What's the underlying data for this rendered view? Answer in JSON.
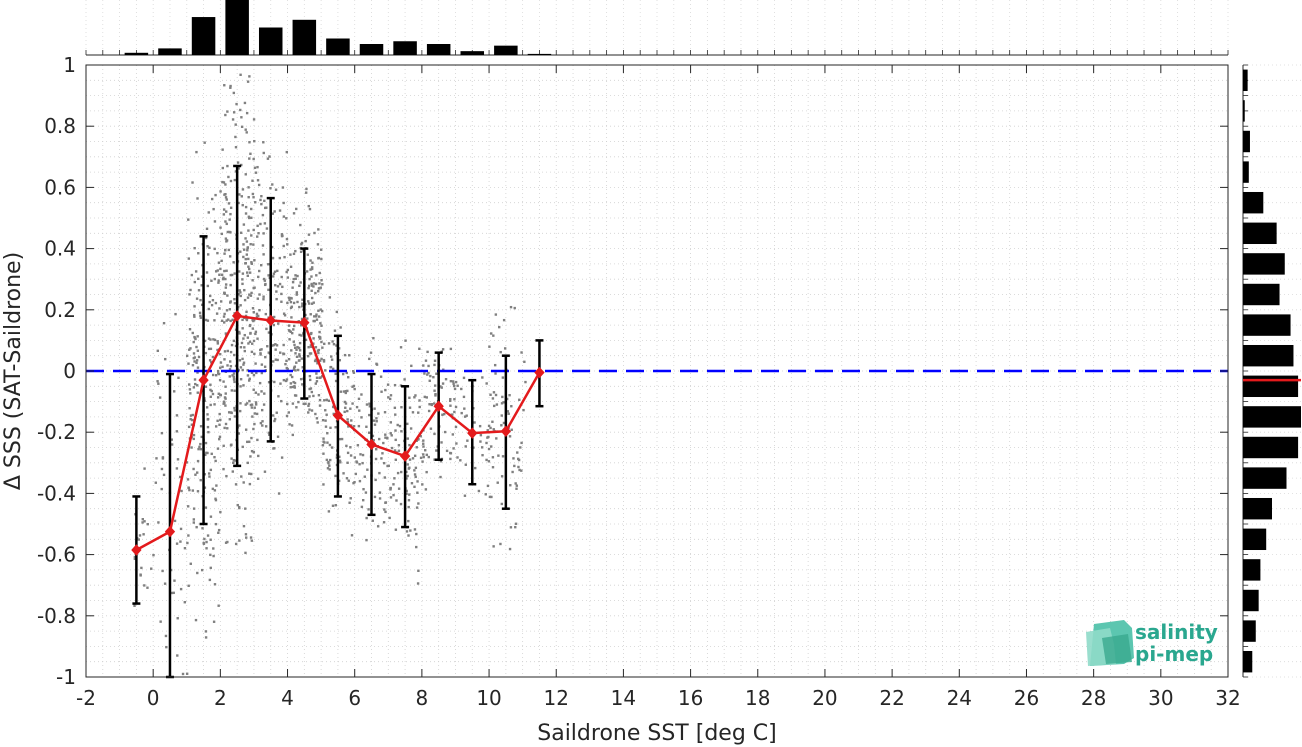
{
  "chart_data": {
    "type": "scatter",
    "xlabel": "Saildrone SST [deg C]",
    "ylabel": "Δ SSS (SAT-Saildrone)",
    "xlim": [
      -2,
      32
    ],
    "ylim": [
      -1,
      1
    ],
    "xticks": [
      -2,
      0,
      2,
      4,
      6,
      8,
      10,
      12,
      14,
      16,
      18,
      20,
      22,
      24,
      26,
      28,
      30,
      32
    ],
    "yticks": [
      -1,
      -0.8,
      -0.6,
      -0.4,
      -0.2,
      0,
      0.2,
      0.4,
      0.6,
      0.8,
      1
    ],
    "grid": true,
    "reference_line": {
      "y": 0,
      "color": "#0000ff",
      "style": "dashed"
    },
    "binned_mean": {
      "color": "#e31a1c",
      "x": [
        -0.5,
        0.5,
        1.5,
        2.5,
        3.5,
        4.5,
        5.5,
        6.5,
        7.5,
        8.5,
        9.5,
        10.5,
        11.5
      ],
      "mean": [
        -0.585,
        -0.525,
        -0.03,
        0.18,
        0.165,
        0.158,
        -0.145,
        -0.24,
        -0.278,
        -0.115,
        -0.203,
        -0.197,
        -0.005
      ],
      "err_low": [
        -0.76,
        -1.0,
        -0.5,
        -0.31,
        -0.23,
        -0.09,
        -0.41,
        -0.47,
        -0.51,
        -0.29,
        -0.37,
        -0.45,
        -0.115
      ],
      "err_high": [
        -0.41,
        -0.01,
        0.44,
        0.67,
        0.565,
        0.4,
        0.115,
        -0.01,
        -0.05,
        0.06,
        -0.03,
        0.05,
        0.1
      ]
    },
    "scatter_color": "#808080",
    "top_histogram": {
      "bins": [
        -0.5,
        0.5,
        1.5,
        2.5,
        3.5,
        4.5,
        5.5,
        6.5,
        7.5,
        8.5,
        9.5,
        10.5,
        11.5
      ],
      "relative_counts": [
        0.04,
        0.12,
        0.69,
        1.0,
        0.5,
        0.64,
        0.3,
        0.2,
        0.25,
        0.2,
        0.07,
        0.17,
        0.02
      ]
    },
    "right_histogram": {
      "bins": [
        0.95,
        0.85,
        0.75,
        0.65,
        0.55,
        0.45,
        0.35,
        0.25,
        0.15,
        0.05,
        -0.05,
        -0.15,
        -0.25,
        -0.35,
        -0.45,
        -0.55,
        -0.65,
        -0.75,
        -0.85,
        -0.95
      ],
      "relative_counts": [
        0.08,
        0.03,
        0.12,
        0.1,
        0.35,
        0.58,
        0.72,
        0.63,
        0.82,
        0.87,
        0.95,
        1.0,
        0.95,
        0.75,
        0.5,
        0.4,
        0.3,
        0.27,
        0.22,
        0.16
      ],
      "median_marker": {
        "y": -0.03,
        "color": "#e31a1c"
      }
    },
    "logo": {
      "line1": "salinity",
      "line2": "pi-mep",
      "color": "#2aa78f"
    }
  }
}
